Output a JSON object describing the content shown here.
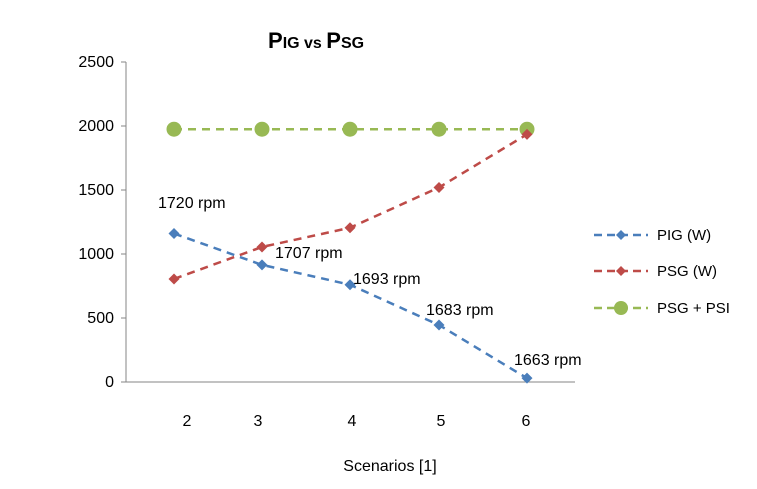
{
  "chart_data": {
    "type": "line",
    "title": {
      "parts": [
        {
          "text": "P",
          "big": true
        },
        {
          "text": "IG vs ",
          "big": false
        },
        {
          "text": "P",
          "big": true
        },
        {
          "text": "SG",
          "big": false
        }
      ]
    },
    "xlabel": "Scenarios [1]",
    "ylabel": "",
    "categories": [
      "2",
      "3",
      "4",
      "5",
      "6"
    ],
    "x": [
      2,
      3,
      4,
      5,
      6
    ],
    "ylim": [
      0,
      2500
    ],
    "yticks": [
      "0",
      "500",
      "1000",
      "1500",
      "2000",
      "2500"
    ],
    "ytick_values": [
      0,
      500,
      1000,
      1500,
      2000,
      2500
    ],
    "grid": false,
    "legend_position": "right",
    "series": [
      {
        "name": "PIG  (W)",
        "values": [
          1160,
          915,
          760,
          445,
          30
        ],
        "color": "#4a7ebb",
        "marker": "diamond"
      },
      {
        "name": "PSG   (W)",
        "values": [
          805,
          1055,
          1205,
          1520,
          1935
        ],
        "color": "#be4b48",
        "marker": "diamond"
      },
      {
        "name": "PSG + PSI",
        "values": [
          1975,
          1975,
          1975,
          1975,
          1975
        ],
        "color": "#98b954",
        "marker": "circle"
      }
    ],
    "annotations": [
      "1720 rpm",
      "1707 rpm",
      "1693 rpm",
      "1683 rpm",
      "1663 rpm"
    ]
  }
}
